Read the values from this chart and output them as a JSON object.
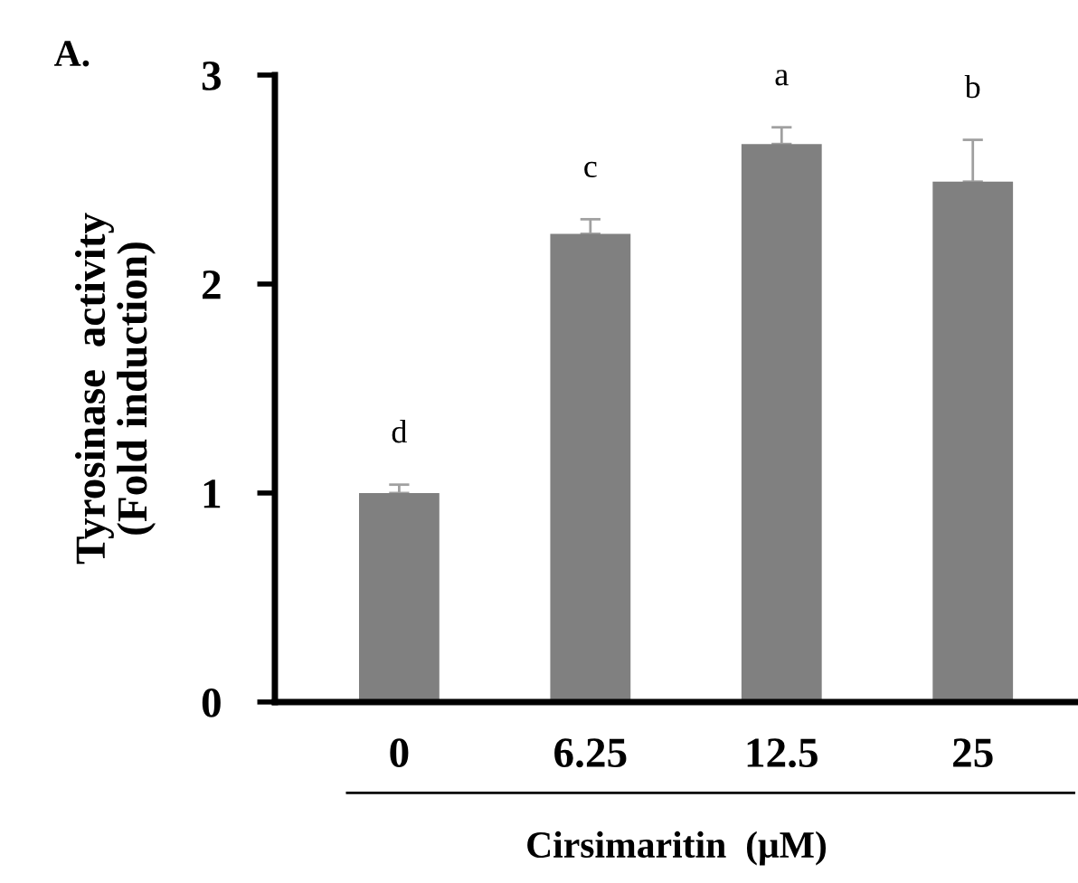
{
  "chart_data": {
    "type": "bar",
    "title": "A.",
    "xlabel": "Cirsimaritin  (μM)",
    "ylabel": "Tyrosinase  activity\n(Fold induction)",
    "categories": [
      "0",
      "6.25",
      "12.5",
      "25"
    ],
    "values": [
      1.0,
      2.24,
      2.67,
      2.49
    ],
    "errors": [
      0.04,
      0.07,
      0.08,
      0.2
    ],
    "color": "#808080",
    "ylim": [
      0,
      3
    ],
    "yticks": [
      0,
      1,
      2,
      3
    ],
    "grid": false,
    "annotations": [
      "d",
      "c",
      "a",
      "b"
    ]
  }
}
